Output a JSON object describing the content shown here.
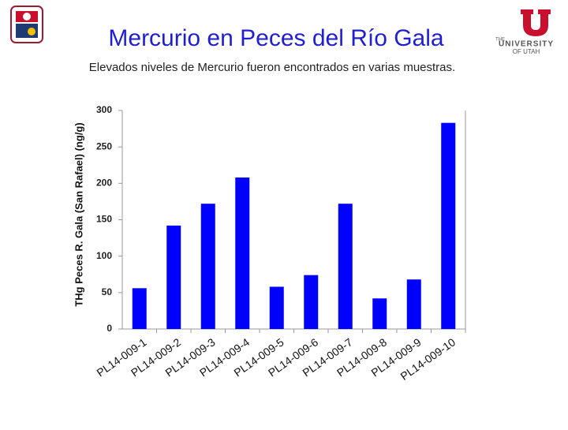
{
  "university_logo": {
    "line1": "THE",
    "line2": "UNIVERSITY",
    "line3": "OF UTAH"
  },
  "chart_data": {
    "type": "bar",
    "title": "Mercurio en Peces del Río Gala",
    "subtitle": "Elevados niveles de Mercurio fueron encontrados en varias muestras.",
    "y_label": "THg Peces R. Gala (San Rafael) (ng/g)",
    "categories": [
      "PL14-009-1",
      "PL14-009-2",
      "PL14-009-3",
      "PL14-009-4",
      "PL14-009-5",
      "PL14-009-6",
      "PL14-009-7",
      "PL14-009-8",
      "PL14-009-9",
      "PL14-009-10"
    ],
    "values": [
      56,
      142,
      172,
      208,
      58,
      74,
      172,
      42,
      68,
      283
    ],
    "color": "#0000ff",
    "ylim": [
      0,
      300
    ],
    "yticks": [
      0,
      50,
      100,
      150,
      200,
      250,
      300
    ],
    "grid": false
  }
}
